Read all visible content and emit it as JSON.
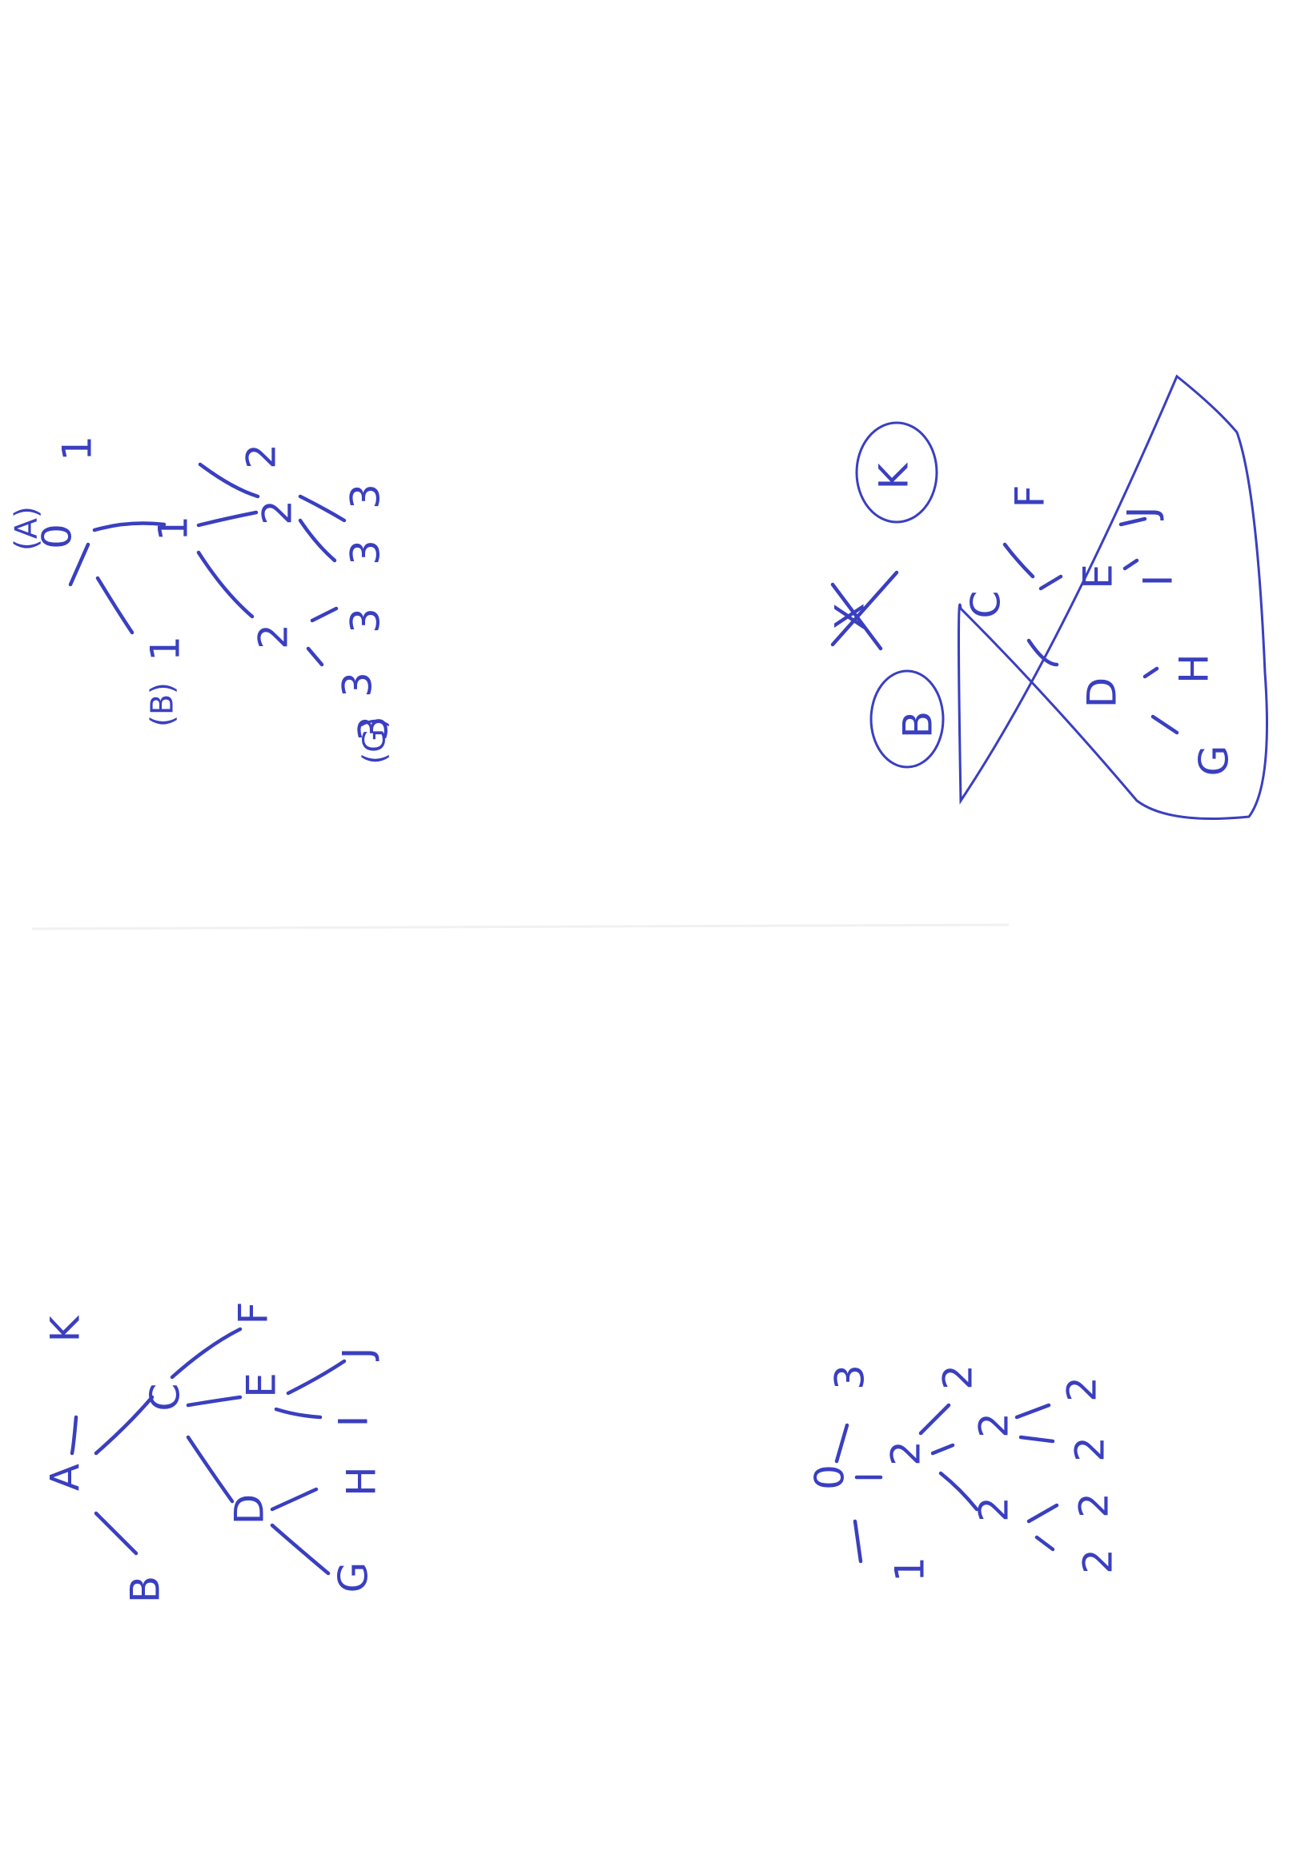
{
  "ink_color": "#3a3fc0",
  "paper_color": "#ffffff",
  "diagram_a": {
    "nodes": [
      {
        "id": "r",
        "label": "0"
      },
      {
        "id": "r1",
        "label": "1"
      },
      {
        "id": "m",
        "label": "1"
      },
      {
        "id": "b1",
        "label": "1"
      },
      {
        "id": "m2a",
        "label": "2"
      },
      {
        "id": "m2b",
        "label": "2"
      },
      {
        "id": "m2c",
        "label": "2"
      },
      {
        "id": "l1",
        "label": "3"
      },
      {
        "id": "l2",
        "label": "3"
      },
      {
        "id": "l3",
        "label": "3"
      },
      {
        "id": "l4",
        "label": "3"
      },
      {
        "id": "l5",
        "label": "3"
      }
    ],
    "markers": [
      "(A)",
      "(B)",
      "(G)"
    ],
    "edges": [
      [
        "r",
        "r1"
      ],
      [
        "r",
        "m"
      ],
      [
        "r",
        "b1"
      ],
      [
        "m",
        "m2a"
      ],
      [
        "m",
        "m2b"
      ],
      [
        "m",
        "m2c"
      ],
      [
        "m2b",
        "l1"
      ],
      [
        "m2b",
        "l2"
      ],
      [
        "m2c",
        "l3"
      ],
      [
        "m2c",
        "l4"
      ]
    ]
  },
  "diagram_b": {
    "nodes": [
      {
        "id": "B",
        "label": "B"
      },
      {
        "id": "X",
        "label": "X"
      },
      {
        "id": "K",
        "label": "K"
      },
      {
        "id": "C",
        "label": "C"
      },
      {
        "id": "F",
        "label": "F"
      },
      {
        "id": "E",
        "label": "E"
      },
      {
        "id": "J",
        "label": "J"
      },
      {
        "id": "I",
        "label": "I"
      },
      {
        "id": "D",
        "label": "D"
      },
      {
        "id": "H",
        "label": "H"
      },
      {
        "id": "G",
        "label": "G"
      }
    ],
    "circled": [
      "B",
      "K"
    ],
    "crossed_out": [
      "X"
    ],
    "edges": [
      [
        "C",
        "F"
      ],
      [
        "C",
        "E"
      ],
      [
        "C",
        "D"
      ],
      [
        "E",
        "J"
      ],
      [
        "E",
        "I"
      ],
      [
        "D",
        "H"
      ],
      [
        "D",
        "G"
      ]
    ]
  },
  "diagram_c": {
    "nodes": [
      {
        "id": "A",
        "label": "A"
      },
      {
        "id": "B",
        "label": "B"
      },
      {
        "id": "K",
        "label": "K"
      },
      {
        "id": "C",
        "label": "C"
      },
      {
        "id": "F",
        "label": "F"
      },
      {
        "id": "E",
        "label": "E"
      },
      {
        "id": "J",
        "label": "J"
      },
      {
        "id": "I",
        "label": "I"
      },
      {
        "id": "D",
        "label": "D"
      },
      {
        "id": "H",
        "label": "H"
      },
      {
        "id": "G",
        "label": "G"
      }
    ],
    "edges": [
      [
        "A",
        "K"
      ],
      [
        "A",
        "B"
      ],
      [
        "A",
        "C"
      ],
      [
        "C",
        "F"
      ],
      [
        "C",
        "E"
      ],
      [
        "C",
        "D"
      ],
      [
        "E",
        "J"
      ],
      [
        "E",
        "I"
      ],
      [
        "D",
        "H"
      ],
      [
        "D",
        "G"
      ]
    ]
  },
  "diagram_d": {
    "nodes": [
      {
        "id": "r",
        "label": "0"
      },
      {
        "id": "t",
        "label": "3"
      },
      {
        "id": "b",
        "label": "1"
      },
      {
        "id": "m",
        "label": "2"
      },
      {
        "id": "m1",
        "label": "2"
      },
      {
        "id": "m2",
        "label": "2"
      },
      {
        "id": "m3",
        "label": "2"
      },
      {
        "id": "l1",
        "label": "2"
      },
      {
        "id": "l2",
        "label": "2"
      },
      {
        "id": "l3",
        "label": "2"
      },
      {
        "id": "l4",
        "label": "2"
      }
    ],
    "edges": [
      [
        "r",
        "t"
      ],
      [
        "r",
        "b"
      ],
      [
        "r",
        "m"
      ],
      [
        "m",
        "m1"
      ],
      [
        "m",
        "m2"
      ],
      [
        "m",
        "m3"
      ],
      [
        "m2",
        "l1"
      ],
      [
        "m2",
        "l2"
      ],
      [
        "m3",
        "l3"
      ],
      [
        "m3",
        "l4"
      ]
    ]
  }
}
